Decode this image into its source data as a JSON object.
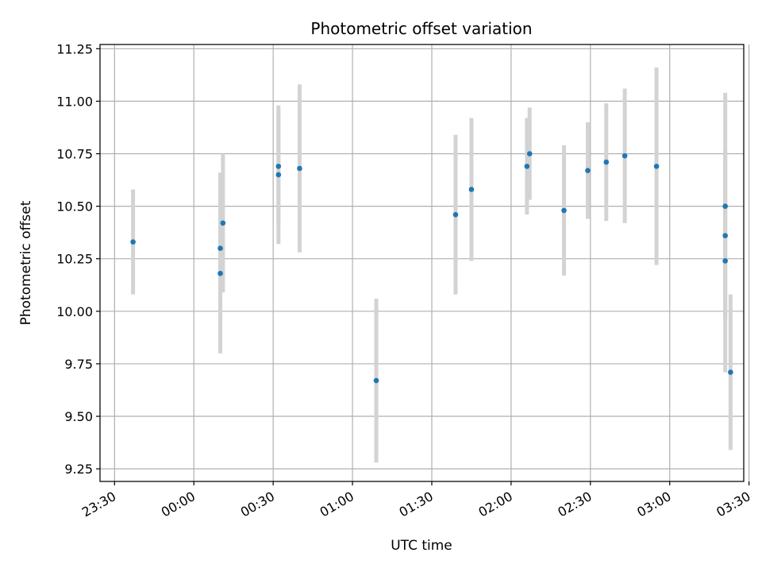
{
  "chart_data": {
    "type": "scatter",
    "title": "Photometric offset variation",
    "xlabel": "UTC time",
    "ylabel": "Photometric offset",
    "x_ticks": [
      "23:30",
      "00:00",
      "00:30",
      "01:00",
      "01:30",
      "02:00",
      "02:30",
      "03:00",
      "03:30"
    ],
    "x_tick_minutes": [
      -30,
      0,
      30,
      60,
      90,
      120,
      150,
      180,
      210
    ],
    "y_ticks": [
      "9.25",
      "9.50",
      "9.75",
      "10.00",
      "10.25",
      "10.50",
      "10.75",
      "11.00",
      "11.25"
    ],
    "y_tick_values": [
      9.25,
      9.5,
      9.75,
      10.0,
      10.25,
      10.5,
      10.75,
      11.0,
      11.25
    ],
    "xlim_minutes": [
      -35.5,
      208
    ],
    "ylim": [
      9.19,
      11.27
    ],
    "grid": true,
    "marker_color": "#1f77b4",
    "errorbar_color": "#d3d3d3",
    "x_minutes_note": "x values are UTC times as HH:MM",
    "points": [
      {
        "x": "23:37",
        "y": 10.33,
        "yerr": 0.25
      },
      {
        "x": "00:10",
        "y": 10.18,
        "yerr": 0.38
      },
      {
        "x": "00:10",
        "y": 10.3,
        "yerr": 0.36
      },
      {
        "x": "00:11",
        "y": 10.42,
        "yerr": 0.33
      },
      {
        "x": "00:32",
        "y": 10.65,
        "yerr": 0.33
      },
      {
        "x": "00:32",
        "y": 10.69,
        "yerr": 0.27
      },
      {
        "x": "00:40",
        "y": 10.68,
        "yerr": 0.4
      },
      {
        "x": "01:09",
        "y": 9.67,
        "yerr": 0.39
      },
      {
        "x": "01:39",
        "y": 10.46,
        "yerr": 0.38
      },
      {
        "x": "01:45",
        "y": 10.58,
        "yerr": 0.34
      },
      {
        "x": "02:06",
        "y": 10.69,
        "yerr": 0.23
      },
      {
        "x": "02:07",
        "y": 10.75,
        "yerr": 0.22
      },
      {
        "x": "02:20",
        "y": 10.48,
        "yerr": 0.31
      },
      {
        "x": "02:29",
        "y": 10.67,
        "yerr": 0.23
      },
      {
        "x": "02:36",
        "y": 10.71,
        "yerr": 0.28
      },
      {
        "x": "02:43",
        "y": 10.74,
        "yerr": 0.32
      },
      {
        "x": "02:55",
        "y": 10.69,
        "yerr": 0.47
      },
      {
        "x": "03:21",
        "y": 10.5,
        "yerr": 0.54
      },
      {
        "x": "03:21",
        "y": 10.36,
        "yerr": 0.4
      },
      {
        "x": "03:21",
        "y": 10.24,
        "yerr": 0.53
      },
      {
        "x": "03:23",
        "y": 9.71,
        "yerr": 0.37
      }
    ]
  }
}
